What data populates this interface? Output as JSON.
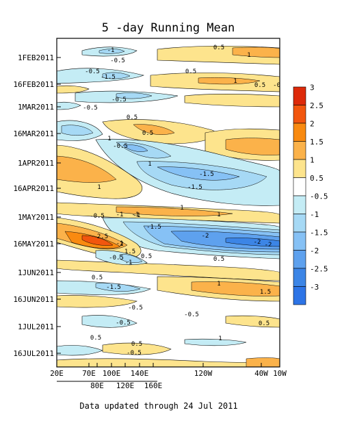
{
  "chart_data": {
    "type": "heatmap",
    "title": "5 -day Running Mean",
    "footer": "Data updated through 24 Jul 2011",
    "x_ticks_top_row": [
      "20E",
      "70E",
      "100E",
      "140E",
      "120W",
      "40W",
      "10W"
    ],
    "x_ticks_bottom_row": [
      "80E",
      "120E",
      "160E"
    ],
    "y_ticks": [
      "1FEB2011",
      "16FEB2011",
      "1MAR2011",
      "16MAR2011",
      "1APR2011",
      "16APR2011",
      "1MAY2011",
      "16MAY2011",
      "1JUN2011",
      "16JUN2011",
      "1JUL2011",
      "16JUL2011"
    ],
    "colorbar": {
      "levels": [
        "3",
        "2.5",
        "2",
        "1.5",
        "1",
        "0.5",
        "-0.5",
        "-1",
        "-1.5",
        "-2",
        "-2.5",
        "-3"
      ],
      "colors": [
        "#dd2a0a",
        "#f2560e",
        "#f98a10",
        "#fbb24a",
        "#fde48d",
        "#ffffff",
        "#c4ecf5",
        "#a6d9f5",
        "#86c1f5",
        "#5ea1ee",
        "#3c85e6",
        "#2d74e6"
      ]
    },
    "contour_labels": [
      "-1",
      "-0.5",
      "0.5",
      "1",
      "-0.5",
      "0.5",
      "-1.5",
      "0.5",
      "1",
      "-0.5",
      "-0.5",
      "-0.5",
      "0.5",
      "0.5",
      "1",
      "-0.5",
      "1",
      "-1.5",
      "-1.5",
      "-1",
      "-1",
      "1",
      "1",
      "1",
      "-1",
      "-0.5",
      "-1.5",
      "-1",
      "-2",
      "-2",
      "-2",
      "2.5",
      "2",
      "1.5",
      "0.5",
      "-0.5",
      "-1",
      "0.5",
      "0.5",
      "-1.5",
      "1",
      "1.5",
      "-0.5",
      "-0.5",
      "-0.5",
      "0.5",
      "0.5",
      "0.5",
      "1",
      "-0.5"
    ]
  }
}
